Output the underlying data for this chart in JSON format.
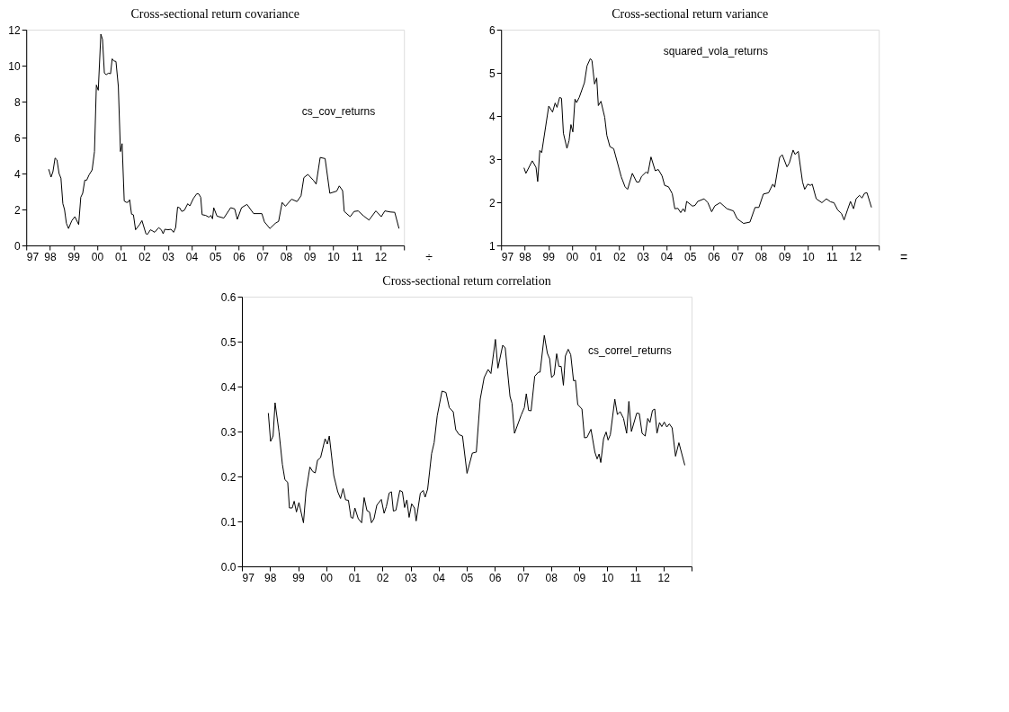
{
  "chart_data": [
    {
      "type": "line",
      "title": "Cross-sectional return covariance",
      "xlim": [
        1997,
        2013
      ],
      "ylim": [
        0,
        12
      ],
      "yticks": [
        0,
        2,
        4,
        6,
        8,
        10,
        12
      ],
      "xticks": [
        {
          "value": 1997,
          "label": "97"
        },
        {
          "value": 1998,
          "label": "98"
        },
        {
          "value": 1999,
          "label": "99"
        },
        {
          "value": 2000,
          "label": "00"
        },
        {
          "value": 2001,
          "label": "01"
        },
        {
          "value": 2002,
          "label": "02"
        },
        {
          "value": 2003,
          "label": "03"
        },
        {
          "value": 2004,
          "label": "04"
        },
        {
          "value": 2005,
          "label": "05"
        },
        {
          "value": 2006,
          "label": "06"
        },
        {
          "value": 2007,
          "label": "07"
        },
        {
          "value": 2008,
          "label": "08"
        },
        {
          "value": 2009,
          "label": "09"
        },
        {
          "value": 2010,
          "label": "10"
        },
        {
          "value": 2011,
          "label": "11"
        },
        {
          "value": 2012,
          "label": "12"
        },
        {
          "value": 2013,
          "label": null
        }
      ],
      "annotations": [
        "÷"
      ],
      "series": [
        {
          "name": "cs_cov_returns",
          "color": "#000000",
          "x": [
            1997.95,
            1998.05,
            1998.13,
            1998.22,
            1998.3,
            1998.39,
            1998.47,
            1998.55,
            1998.62,
            1998.7,
            1998.79,
            1998.93,
            1999.06,
            1999.22,
            1999.31,
            1999.39,
            1999.48,
            1999.56,
            1999.66,
            1999.79,
            1999.89,
            1999.97,
            2000.05,
            2000.16,
            2000.23,
            2000.31,
            2000.39,
            2000.48,
            2000.57,
            2000.64,
            2000.71,
            2000.8,
            2000.9,
            2000.99,
            2001.06,
            2001.15,
            2001.23,
            2001.31,
            2001.38,
            2001.46,
            2001.54,
            2001.63,
            2001.8,
            2001.9,
            2002.07,
            2002.13,
            2002.26,
            2002.36,
            2002.44,
            2002.61,
            2002.72,
            2002.8,
            2002.87,
            2003.01,
            2003.13,
            2003.24,
            2003.33,
            2003.41,
            2003.49,
            2003.59,
            2003.7,
            2003.84,
            2003.93,
            2004.08,
            2004.22,
            2004.3,
            2004.39,
            2004.45,
            2004.6,
            2004.74,
            2004.82,
            2004.89,
            2004.94,
            2005.08,
            2005.37,
            2005.66,
            2005.83,
            2005.94,
            2006.12,
            2006.35,
            2006.63,
            2006.98,
            2007.09,
            2007.32,
            2007.55,
            2007.69,
            2007.84,
            2007.98,
            2008.24,
            2008.47,
            2008.64,
            2008.76,
            2008.93,
            2009.16,
            2009.28,
            2009.45,
            2009.66,
            2009.86,
            2010.15,
            2010.26,
            2010.4,
            2010.47,
            2010.72,
            2010.89,
            2011.06,
            2011.29,
            2011.52,
            2011.81,
            2012.04,
            2012.19,
            2012.42,
            2012.61,
            2012.79
          ],
          "values": [
            4.24,
            3.8,
            4.1,
            4.86,
            4.76,
            4.0,
            3.74,
            2.32,
            2.0,
            1.23,
            0.94,
            1.38,
            1.6,
            1.16,
            2.68,
            2.9,
            3.63,
            3.63,
            3.92,
            4.2,
            5.22,
            8.92,
            8.63,
            11.75,
            11.46,
            9.58,
            9.5,
            9.58,
            9.55,
            10.38,
            10.26,
            10.23,
            8.85,
            5.22,
            5.66,
            2.47,
            2.4,
            2.4,
            2.54,
            1.74,
            1.7,
            0.87,
            1.16,
            1.38,
            0.65,
            0.61,
            0.87,
            0.8,
            0.73,
            0.99,
            0.87,
            0.65,
            0.9,
            0.87,
            0.9,
            0.73,
            1.0,
            2.13,
            2.1,
            1.89,
            1.96,
            2.32,
            2.2,
            2.61,
            2.87,
            2.87,
            2.68,
            1.71,
            1.67,
            1.57,
            1.67,
            1.48,
            2.1,
            1.63,
            1.52,
            2.1,
            2.03,
            1.45,
            2.1,
            2.28,
            1.77,
            1.77,
            1.31,
            0.94,
            1.23,
            1.34,
            2.39,
            2.18,
            2.57,
            2.44,
            2.76,
            3.77,
            3.95,
            3.63,
            3.41,
            4.89,
            4.83,
            2.9,
            3.02,
            3.31,
            3.05,
            1.89,
            1.6,
            1.89,
            1.92,
            1.64,
            1.41,
            1.92,
            1.6,
            1.92,
            1.86,
            1.84,
            0.94
          ]
        }
      ]
    },
    {
      "type": "line",
      "title": "Cross-sectional return variance",
      "xlim": [
        1997,
        2013
      ],
      "ylim": [
        1,
        6
      ],
      "yticks": [
        1,
        2,
        3,
        4,
        5,
        6
      ],
      "xticks": [
        {
          "value": 1997,
          "label": "97"
        },
        {
          "value": 1998,
          "label": "98"
        },
        {
          "value": 1999,
          "label": "99"
        },
        {
          "value": 2000,
          "label": "00"
        },
        {
          "value": 2001,
          "label": "01"
        },
        {
          "value": 2002,
          "label": "02"
        },
        {
          "value": 2003,
          "label": "03"
        },
        {
          "value": 2004,
          "label": "04"
        },
        {
          "value": 2005,
          "label": "05"
        },
        {
          "value": 2006,
          "label": "06"
        },
        {
          "value": 2007,
          "label": "07"
        },
        {
          "value": 2008,
          "label": "08"
        },
        {
          "value": 2009,
          "label": "09"
        },
        {
          "value": 2010,
          "label": "10"
        },
        {
          "value": 2011,
          "label": "11"
        },
        {
          "value": 2012,
          "label": "12"
        },
        {
          "value": 2013,
          "label": null
        }
      ],
      "annotations": [
        "="
      ],
      "series": [
        {
          "name": "squared_vola_returns",
          "color": "#000000",
          "x": [
            1997.97,
            1998.05,
            1998.32,
            1998.48,
            1998.55,
            1998.64,
            1998.72,
            1999.02,
            1999.18,
            1999.29,
            1999.37,
            1999.48,
            1999.56,
            1999.64,
            1999.79,
            1999.88,
            1999.96,
            2000.04,
            2000.13,
            2000.2,
            2000.31,
            2000.53,
            2000.64,
            2000.78,
            2000.85,
            2000.96,
            2001.05,
            2001.12,
            2001.23,
            2001.39,
            2001.48,
            2001.61,
            2001.77,
            2002.09,
            2002.25,
            2002.36,
            2002.56,
            2002.74,
            2002.85,
            2002.95,
            2003.14,
            2003.22,
            2003.35,
            2003.53,
            2003.66,
            2003.82,
            2003.93,
            2004.09,
            2004.25,
            2004.36,
            2004.49,
            2004.61,
            2004.71,
            2004.79,
            2004.86,
            2005.11,
            2005.22,
            2005.33,
            2005.6,
            2005.76,
            2005.92,
            2006.06,
            2006.28,
            2006.57,
            2006.84,
            2007.0,
            2007.27,
            2007.54,
            2007.76,
            2007.92,
            2008.11,
            2008.33,
            2008.51,
            2008.59,
            2008.8,
            2008.91,
            2009.11,
            2009.21,
            2009.37,
            2009.45,
            2009.59,
            2009.77,
            2009.86,
            2009.99,
            2010.1,
            2010.18,
            2010.35,
            2010.59,
            2010.78,
            2010.96,
            2011.1,
            2011.26,
            2011.42,
            2011.53,
            2011.69,
            2011.8,
            2011.93,
            2012.04,
            2012.18,
            2012.29,
            2012.4,
            2012.5,
            2012.69
          ],
          "values": [
            2.8,
            2.67,
            2.96,
            2.81,
            2.48,
            3.2,
            3.15,
            4.23,
            4.09,
            4.3,
            4.2,
            4.43,
            4.41,
            3.6,
            3.25,
            3.43,
            3.8,
            3.63,
            4.39,
            4.31,
            4.43,
            4.77,
            5.16,
            5.33,
            5.28,
            4.74,
            4.88,
            4.24,
            4.34,
            3.97,
            3.55,
            3.29,
            3.24,
            2.59,
            2.36,
            2.3,
            2.67,
            2.47,
            2.47,
            2.6,
            2.7,
            2.67,
            3.05,
            2.73,
            2.76,
            2.61,
            2.39,
            2.36,
            2.2,
            1.85,
            1.86,
            1.76,
            1.85,
            1.78,
            2.02,
            1.91,
            1.93,
            2.02,
            2.08,
            1.99,
            1.78,
            1.92,
            1.99,
            1.85,
            1.8,
            1.62,
            1.51,
            1.54,
            1.88,
            1.88,
            2.19,
            2.22,
            2.42,
            2.35,
            3.04,
            3.1,
            2.82,
            2.91,
            3.21,
            3.11,
            3.18,
            2.47,
            2.3,
            2.42,
            2.39,
            2.42,
            2.08,
            1.99,
            2.08,
            2.01,
            1.99,
            1.82,
            1.74,
            1.59,
            1.85,
            2.02,
            1.85,
            2.08,
            2.16,
            2.1,
            2.21,
            2.22,
            1.88
          ]
        }
      ]
    },
    {
      "type": "line",
      "title": "Cross-sectional return correlation",
      "xlim": [
        1997,
        2013
      ],
      "ylim": [
        0,
        0.6
      ],
      "yticks": [
        {
          "value": 0,
          "label": "0.0"
        },
        0.1,
        0.2,
        0.3,
        0.4,
        0.5,
        0.6
      ],
      "xticks": [
        {
          "value": 1997,
          "label": "97"
        },
        {
          "value": 1998,
          "label": "98"
        },
        {
          "value": 1999,
          "label": "99"
        },
        {
          "value": 2000,
          "label": "00"
        },
        {
          "value": 2001,
          "label": "01"
        },
        {
          "value": 2002,
          "label": "02"
        },
        {
          "value": 2003,
          "label": "03"
        },
        {
          "value": 2004,
          "label": "04"
        },
        {
          "value": 2005,
          "label": "05"
        },
        {
          "value": 2006,
          "label": "06"
        },
        {
          "value": 2007,
          "label": "07"
        },
        {
          "value": 2008,
          "label": "08"
        },
        {
          "value": 2009,
          "label": "09"
        },
        {
          "value": 2010,
          "label": "10"
        },
        {
          "value": 2011,
          "label": "11"
        },
        {
          "value": 2012,
          "label": "12"
        },
        {
          "value": 2013,
          "label": null
        }
      ],
      "series": [
        {
          "name": "cs_correl_returns",
          "color": "#000000",
          "x": [
            1997.94,
            1998.02,
            1998.11,
            1998.18,
            1998.32,
            1998.44,
            1998.53,
            1998.63,
            1998.69,
            1998.79,
            1998.86,
            1998.94,
            1999.03,
            1999.19,
            1999.28,
            1999.42,
            1999.52,
            1999.61,
            1999.69,
            1999.8,
            1999.96,
            2000.04,
            2000.11,
            2000.27,
            2000.41,
            2000.51,
            2000.6,
            2000.69,
            2000.79,
            2000.88,
            2000.95,
            2001.02,
            2001.14,
            2001.26,
            2001.35,
            2001.45,
            2001.54,
            2001.61,
            2001.7,
            2001.8,
            2001.96,
            2002.06,
            2002.14,
            2002.24,
            2002.32,
            2002.39,
            2002.48,
            2002.62,
            2002.71,
            2002.79,
            2002.87,
            2002.95,
            2003.04,
            2003.14,
            2003.2,
            2003.35,
            2003.45,
            2003.52,
            2003.61,
            2003.75,
            2003.84,
            2003.95,
            2004.12,
            2004.26,
            2004.38,
            2004.52,
            2004.61,
            2004.73,
            2004.85,
            2005.01,
            2005.2,
            2005.34,
            2005.48,
            2005.62,
            2005.76,
            2005.86,
            2006.02,
            2006.11,
            2006.28,
            2006.37,
            2006.54,
            2006.61,
            2006.7,
            2006.94,
            2007.05,
            2007.12,
            2007.2,
            2007.29,
            2007.42,
            2007.55,
            2007.61,
            2007.76,
            2007.87,
            2007.95,
            2008.02,
            2008.11,
            2008.2,
            2008.28,
            2008.36,
            2008.44,
            2008.51,
            2008.61,
            2008.7,
            2008.8,
            2008.87,
            2008.95,
            2009.1,
            2009.19,
            2009.28,
            2009.42,
            2009.56,
            2009.64,
            2009.71,
            2009.77,
            2009.87,
            2009.96,
            2010.03,
            2010.11,
            2010.27,
            2010.36,
            2010.46,
            2010.58,
            2010.69,
            2010.77,
            2010.86,
            2011.05,
            2011.14,
            2011.24,
            2011.35,
            2011.44,
            2011.52,
            2011.61,
            2011.69,
            2011.77,
            2011.86,
            2011.94,
            2012.03,
            2012.12,
            2012.21,
            2012.31,
            2012.43,
            2012.55,
            2012.76
          ],
          "values": [
            0.341,
            0.278,
            0.29,
            0.364,
            0.299,
            0.227,
            0.193,
            0.187,
            0.13,
            0.13,
            0.145,
            0.121,
            0.142,
            0.097,
            0.166,
            0.221,
            0.211,
            0.208,
            0.236,
            0.242,
            0.284,
            0.272,
            0.29,
            0.202,
            0.166,
            0.151,
            0.173,
            0.148,
            0.147,
            0.109,
            0.107,
            0.13,
            0.106,
            0.097,
            0.153,
            0.124,
            0.121,
            0.097,
            0.106,
            0.136,
            0.149,
            0.118,
            0.133,
            0.163,
            0.166,
            0.123,
            0.125,
            0.169,
            0.166,
            0.131,
            0.148,
            0.109,
            0.139,
            0.13,
            0.101,
            0.163,
            0.169,
            0.154,
            0.172,
            0.251,
            0.275,
            0.335,
            0.39,
            0.387,
            0.353,
            0.344,
            0.304,
            0.293,
            0.29,
            0.207,
            0.252,
            0.254,
            0.372,
            0.42,
            0.438,
            0.429,
            0.505,
            0.441,
            0.492,
            0.486,
            0.378,
            0.363,
            0.296,
            0.337,
            0.353,
            0.384,
            0.347,
            0.346,
            0.423,
            0.432,
            0.432,
            0.514,
            0.474,
            0.462,
            0.42,
            0.426,
            0.473,
            0.445,
            0.445,
            0.403,
            0.468,
            0.483,
            0.471,
            0.413,
            0.414,
            0.36,
            0.35,
            0.286,
            0.287,
            0.305,
            0.254,
            0.239,
            0.25,
            0.231,
            0.284,
            0.299,
            0.281,
            0.293,
            0.372,
            0.338,
            0.344,
            0.329,
            0.296,
            0.367,
            0.3,
            0.341,
            0.34,
            0.296,
            0.29,
            0.329,
            0.32,
            0.347,
            0.35,
            0.296,
            0.32,
            0.311,
            0.321,
            0.31,
            0.317,
            0.308,
            0.245,
            0.275,
            0.225
          ]
        }
      ]
    }
  ]
}
